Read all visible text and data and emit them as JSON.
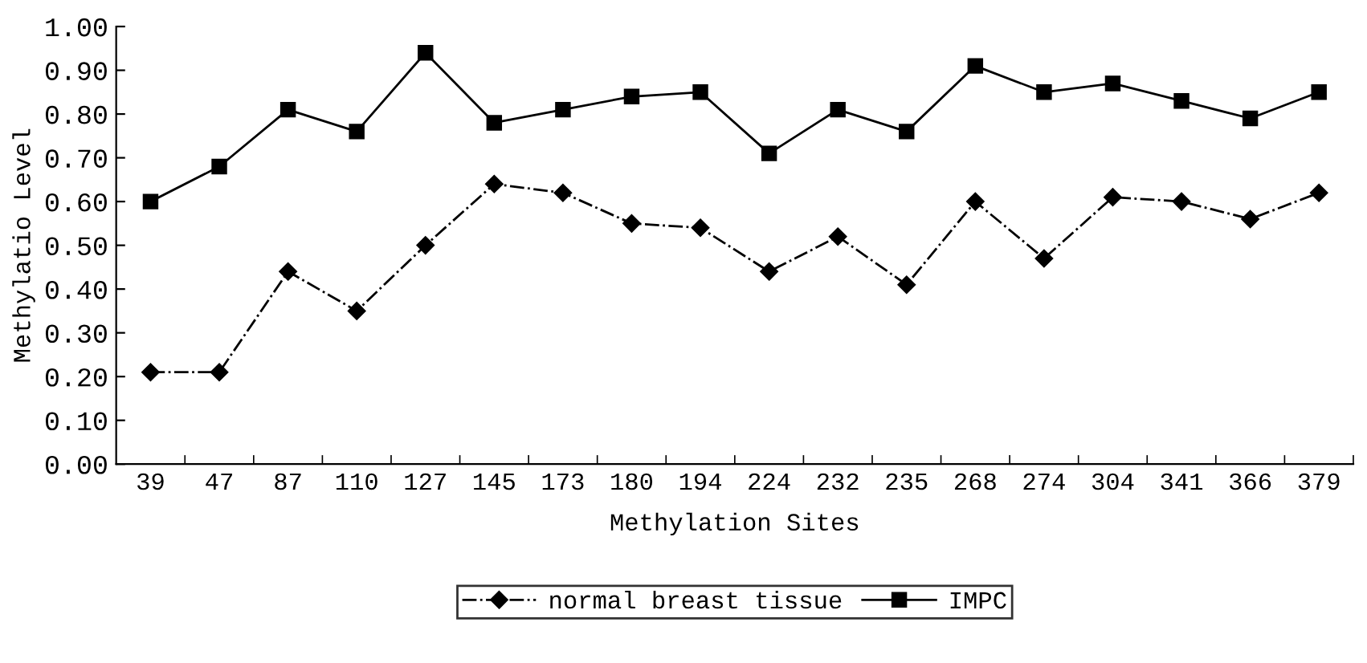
{
  "chart_data": {
    "type": "line",
    "xlabel": "Methylation Sites",
    "ylabel": "Methylatio Level",
    "categories": [
      "39",
      "47",
      "87",
      "110",
      "127",
      "145",
      "173",
      "180",
      "194",
      "224",
      "232",
      "235",
      "268",
      "274",
      "304",
      "341",
      "366",
      "379"
    ],
    "series": [
      {
        "name": "normal breast tissue",
        "color": "#000000",
        "marker": "diamond",
        "line_style": "dashdot",
        "values": [
          0.21,
          0.21,
          0.44,
          0.35,
          0.5,
          0.64,
          0.62,
          0.55,
          0.54,
          0.44,
          0.52,
          0.41,
          0.6,
          0.47,
          0.61,
          0.6,
          0.56,
          0.62
        ]
      },
      {
        "name": "IMPC",
        "color": "#000000",
        "marker": "square",
        "line_style": "solid",
        "values": [
          0.6,
          0.68,
          0.81,
          0.76,
          0.94,
          0.78,
          0.81,
          0.84,
          0.85,
          0.71,
          0.81,
          0.76,
          0.91,
          0.85,
          0.87,
          0.83,
          0.79,
          0.85
        ]
      }
    ],
    "ylim": [
      0,
      1
    ],
    "yticks": [
      {
        "value": 0,
        "label": "0.00"
      },
      {
        "value": 0.1,
        "label": "0.10"
      },
      {
        "value": 0.2,
        "label": "0.20"
      },
      {
        "value": 0.3,
        "label": "0.30"
      },
      {
        "value": 0.4,
        "label": "0.40"
      },
      {
        "value": 0.5,
        "label": "0.50"
      },
      {
        "value": 0.6,
        "label": "0.60"
      },
      {
        "value": 0.7,
        "label": "0.70"
      },
      {
        "value": 0.8,
        "label": "0.80"
      },
      {
        "value": 0.9,
        "label": "0.90"
      },
      {
        "value": 1,
        "label": "1.00"
      }
    ],
    "grid": false,
    "legend": "bottom"
  }
}
